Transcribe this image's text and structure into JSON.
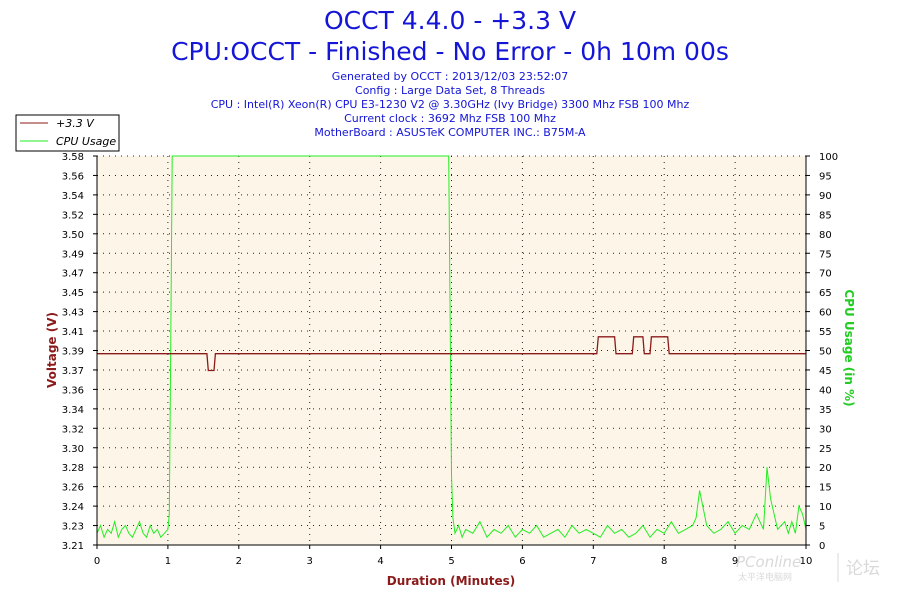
{
  "header": {
    "title": "OCCT 4.4.0 - +3.3 V",
    "subtitle": "CPU:OCCT - Finished - No Error - 0h 10m 00s",
    "info_lines": [
      "Generated by OCCT : 2013/12/03 23:52:07",
      "Config : Large Data Set, 8 Threads",
      "CPU : Intel(R) Xeon(R) CPU E3-1230 V2 @ 3.30GHz (Ivy Bridge) 3300 Mhz FSB 100 Mhz",
      "Current clock : 3692 Mhz FSB 100 Mhz",
      "MotherBoard : ASUSTeK COMPUTER INC.: B75M-A"
    ]
  },
  "watermark": {
    "brand": "PConline",
    "sub": "太平洋电脑网",
    "forum": "论坛"
  },
  "colors": {
    "plot_bg": "#fdf6e8",
    "voltage": "#8b1a1a",
    "cpu": "#22ee22",
    "title": "#1515d8",
    "grid": "#222222"
  },
  "chart_data": {
    "type": "line",
    "xlabel": "Duration (Minutes)",
    "ylabel_left": "Voltage (V)",
    "ylabel_right": "CPU Usage (in %)",
    "x_ticks": [
      0,
      1,
      2,
      3,
      4,
      5,
      6,
      7,
      8,
      9,
      10
    ],
    "xlim": [
      0,
      10
    ],
    "y_left_ticks": [
      "3.21",
      "3.23",
      "3.24",
      "3.26",
      "3.28",
      "3.30",
      "3.32",
      "3.34",
      "3.36",
      "3.37",
      "3.39",
      "3.41",
      "3.43",
      "3.45",
      "3.47",
      "3.49",
      "3.50",
      "3.52",
      "3.54",
      "3.56",
      "3.58"
    ],
    "y_left_lim": [
      3.21,
      3.58
    ],
    "y_right_ticks": [
      0,
      5,
      10,
      15,
      20,
      25,
      30,
      35,
      40,
      45,
      50,
      55,
      60,
      65,
      70,
      75,
      80,
      85,
      90,
      95,
      100
    ],
    "y_right_lim": [
      0,
      100
    ],
    "grid": true,
    "legend_position": "top-left",
    "series": [
      {
        "name": "+3.3 V",
        "axis": "left",
        "x": [
          0,
          1.55,
          1.57,
          1.65,
          1.67,
          7.05,
          7.07,
          7.3,
          7.32,
          7.55,
          7.57,
          7.7,
          7.72,
          7.8,
          7.82,
          8.05,
          8.07,
          10
        ],
        "y": [
          3.392,
          3.392,
          3.376,
          3.376,
          3.392,
          3.392,
          3.408,
          3.408,
          3.392,
          3.392,
          3.408,
          3.408,
          3.392,
          3.392,
          3.408,
          3.408,
          3.392,
          3.392
        ]
      },
      {
        "name": "CPU Usage",
        "axis": "right",
        "x": [
          0.0,
          0.05,
          0.1,
          0.15,
          0.2,
          0.25,
          0.3,
          0.35,
          0.4,
          0.45,
          0.5,
          0.55,
          0.6,
          0.65,
          0.7,
          0.75,
          0.8,
          0.85,
          0.9,
          0.95,
          1.0,
          1.02,
          1.04,
          1.06,
          1.5,
          2.0,
          3.0,
          4.0,
          4.96,
          4.98,
          5.0,
          5.02,
          5.05,
          5.1,
          5.15,
          5.2,
          5.3,
          5.4,
          5.5,
          5.6,
          5.7,
          5.8,
          5.9,
          6.0,
          6.1,
          6.2,
          6.3,
          6.4,
          6.5,
          6.6,
          6.7,
          6.8,
          6.9,
          7.0,
          7.1,
          7.2,
          7.3,
          7.4,
          7.5,
          7.6,
          7.7,
          7.8,
          7.9,
          8.0,
          8.1,
          8.2,
          8.3,
          8.4,
          8.45,
          8.5,
          8.6,
          8.7,
          8.8,
          8.9,
          9.0,
          9.1,
          9.2,
          9.3,
          9.35,
          9.4,
          9.45,
          9.5,
          9.6,
          9.7,
          9.75,
          9.8,
          9.85,
          9.9,
          9.95,
          10.0
        ],
        "y": [
          3,
          5,
          2,
          4,
          3,
          6,
          2,
          4,
          5,
          3,
          2,
          4,
          6,
          3,
          2,
          5,
          3,
          4,
          2,
          3,
          4,
          8,
          50,
          100,
          100,
          100,
          100,
          100,
          100,
          60,
          18,
          7,
          3,
          5,
          2,
          4,
          3,
          6,
          2,
          4,
          3,
          5,
          2,
          4,
          3,
          5,
          2,
          3,
          4,
          2,
          5,
          3,
          4,
          3,
          2,
          5,
          3,
          4,
          2,
          3,
          5,
          2,
          4,
          3,
          6,
          3,
          4,
          5,
          7,
          14,
          5,
          3,
          4,
          6,
          3,
          5,
          4,
          8,
          6,
          4,
          20,
          12,
          4,
          6,
          3,
          6,
          3,
          10,
          8,
          4
        ]
      }
    ]
  }
}
